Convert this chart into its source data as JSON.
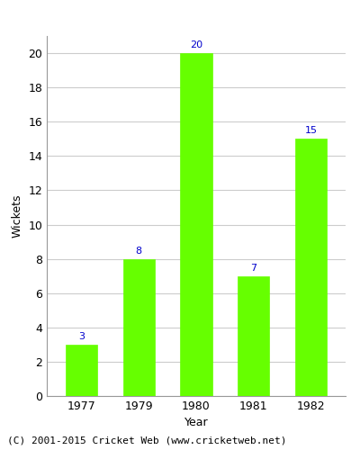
{
  "categories": [
    "1977",
    "1979",
    "1980",
    "1981",
    "1982"
  ],
  "values": [
    3,
    8,
    20,
    7,
    15
  ],
  "bar_color": "#66ff00",
  "bar_edgecolor": "#66ff00",
  "label_color": "#0000cc",
  "xlabel": "Year",
  "ylabel": "Wickets",
  "ylim": [
    0,
    21
  ],
  "yticks": [
    0,
    2,
    4,
    6,
    8,
    10,
    12,
    14,
    16,
    18,
    20
  ],
  "grid_color": "#cccccc",
  "background_color": "#ffffff",
  "footer_text": "(C) 2001-2015 Cricket Web (www.cricketweb.net)",
  "label_fontsize": 8,
  "axis_fontsize": 9,
  "footer_fontsize": 8,
  "bar_width": 0.55
}
